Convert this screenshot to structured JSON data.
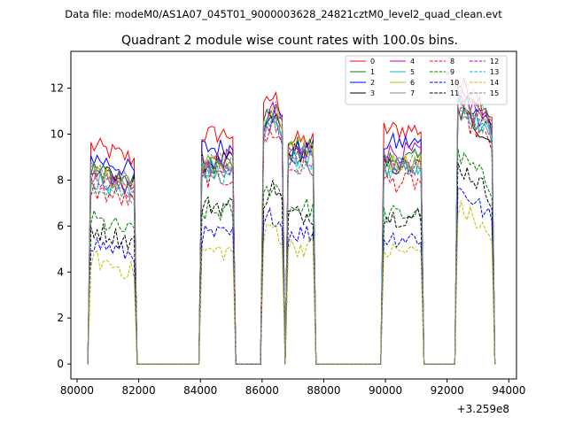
{
  "header": {
    "data_file_text": "Data file: modeM0/AS1A07_045T01_9000003628_24821cztM0_level2_quad_clean.evt"
  },
  "chart_data": {
    "type": "line",
    "title": "Quadrant 2 module wise count rates with 100.0s bins.",
    "xlabel": "",
    "ylabel": "",
    "x_offset_label": "+3.259e8",
    "xlim": [
      79800,
      94250
    ],
    "ylim": [
      -0.65,
      13.6
    ],
    "xticks": [
      80000,
      82000,
      84000,
      86000,
      88000,
      90000,
      92000,
      94000
    ],
    "xtick_labels": [
      "80000",
      "82000",
      "84000",
      "86000",
      "88000",
      "90000",
      "92000",
      "94000"
    ],
    "yticks": [
      0,
      2,
      4,
      6,
      8,
      10,
      12
    ],
    "ytick_labels": [
      "0",
      "2",
      "4",
      "6",
      "8",
      "10",
      "12"
    ],
    "grid": false,
    "legend_placement": "top-right",
    "legend_columns": 4,
    "bin_seconds": 100,
    "segments": [
      {
        "start": 80450,
        "end": 81850
      },
      {
        "start": 84050,
        "end": 85050
      },
      {
        "start": 86050,
        "end": 86650
      },
      {
        "start": 86850,
        "end": 87650
      },
      {
        "start": 89950,
        "end": 91150
      },
      {
        "start": 92350,
        "end": 93450
      }
    ],
    "series": [
      {
        "name": "0",
        "color": "#ff0000",
        "dash": "solid",
        "levels": [
          9.5,
          10.0,
          11.3,
          9.7,
          10.2,
          11.4
        ]
      },
      {
        "name": "1",
        "color": "#008000",
        "dash": "solid",
        "levels": [
          8.5,
          8.7,
          10.6,
          9.5,
          8.9,
          11.0
        ]
      },
      {
        "name": "2",
        "color": "#0000ff",
        "dash": "solid",
        "levels": [
          9.0,
          9.4,
          10.8,
          9.3,
          9.6,
          10.9
        ]
      },
      {
        "name": "3",
        "color": "#000000",
        "dash": "solid",
        "levels": [
          8.4,
          8.8,
          10.4,
          9.2,
          8.6,
          10.2
        ]
      },
      {
        "name": "4",
        "color": "#bf00bf",
        "dash": "solid",
        "levels": [
          8.2,
          8.9,
          10.7,
          9.3,
          9.2,
          10.9
        ]
      },
      {
        "name": "5",
        "color": "#00bfbf",
        "dash": "solid",
        "levels": [
          8.0,
          8.6,
          10.5,
          9.0,
          8.7,
          10.4
        ]
      },
      {
        "name": "6",
        "color": "#bfbf00",
        "dash": "solid",
        "levels": [
          8.3,
          8.7,
          10.6,
          9.4,
          8.8,
          10.7
        ]
      },
      {
        "name": "7",
        "color": "#808080",
        "dash": "solid",
        "levels": [
          8.4,
          8.5,
          10.3,
          9.1,
          8.5,
          10.3
        ]
      },
      {
        "name": "8",
        "color": "#ff0000",
        "dash": "dashed",
        "levels": [
          7.6,
          8.1,
          9.8,
          8.5,
          7.9,
          10.0
        ]
      },
      {
        "name": "9",
        "color": "#008000",
        "dash": "dashed",
        "levels": [
          6.3,
          6.6,
          7.5,
          6.8,
          6.5,
          8.2
        ]
      },
      {
        "name": "10",
        "color": "#0000ff",
        "dash": "dashed",
        "levels": [
          5.3,
          5.6,
          6.2,
          5.7,
          5.5,
          6.8
        ]
      },
      {
        "name": "11",
        "color": "#000000",
        "dash": "dashed",
        "levels": [
          5.9,
          6.9,
          7.4,
          6.5,
          6.4,
          7.8
        ]
      },
      {
        "name": "12",
        "color": "#bf00bf",
        "dash": "dashed",
        "levels": [
          8.1,
          8.5,
          10.2,
          8.9,
          8.6,
          10.6
        ]
      },
      {
        "name": "13",
        "color": "#00bfbf",
        "dash": "dashed",
        "levels": [
          7.9,
          8.3,
          10.0,
          8.7,
          8.4,
          10.4
        ]
      },
      {
        "name": "14",
        "color": "#bfbf00",
        "dash": "dashed",
        "levels": [
          4.6,
          4.9,
          5.7,
          5.1,
          4.9,
          6.0
        ]
      },
      {
        "name": "15",
        "color": "#808080",
        "dash": "dashed",
        "levels": [
          8.5,
          8.8,
          10.9,
          9.3,
          8.9,
          11.4
        ]
      }
    ]
  }
}
